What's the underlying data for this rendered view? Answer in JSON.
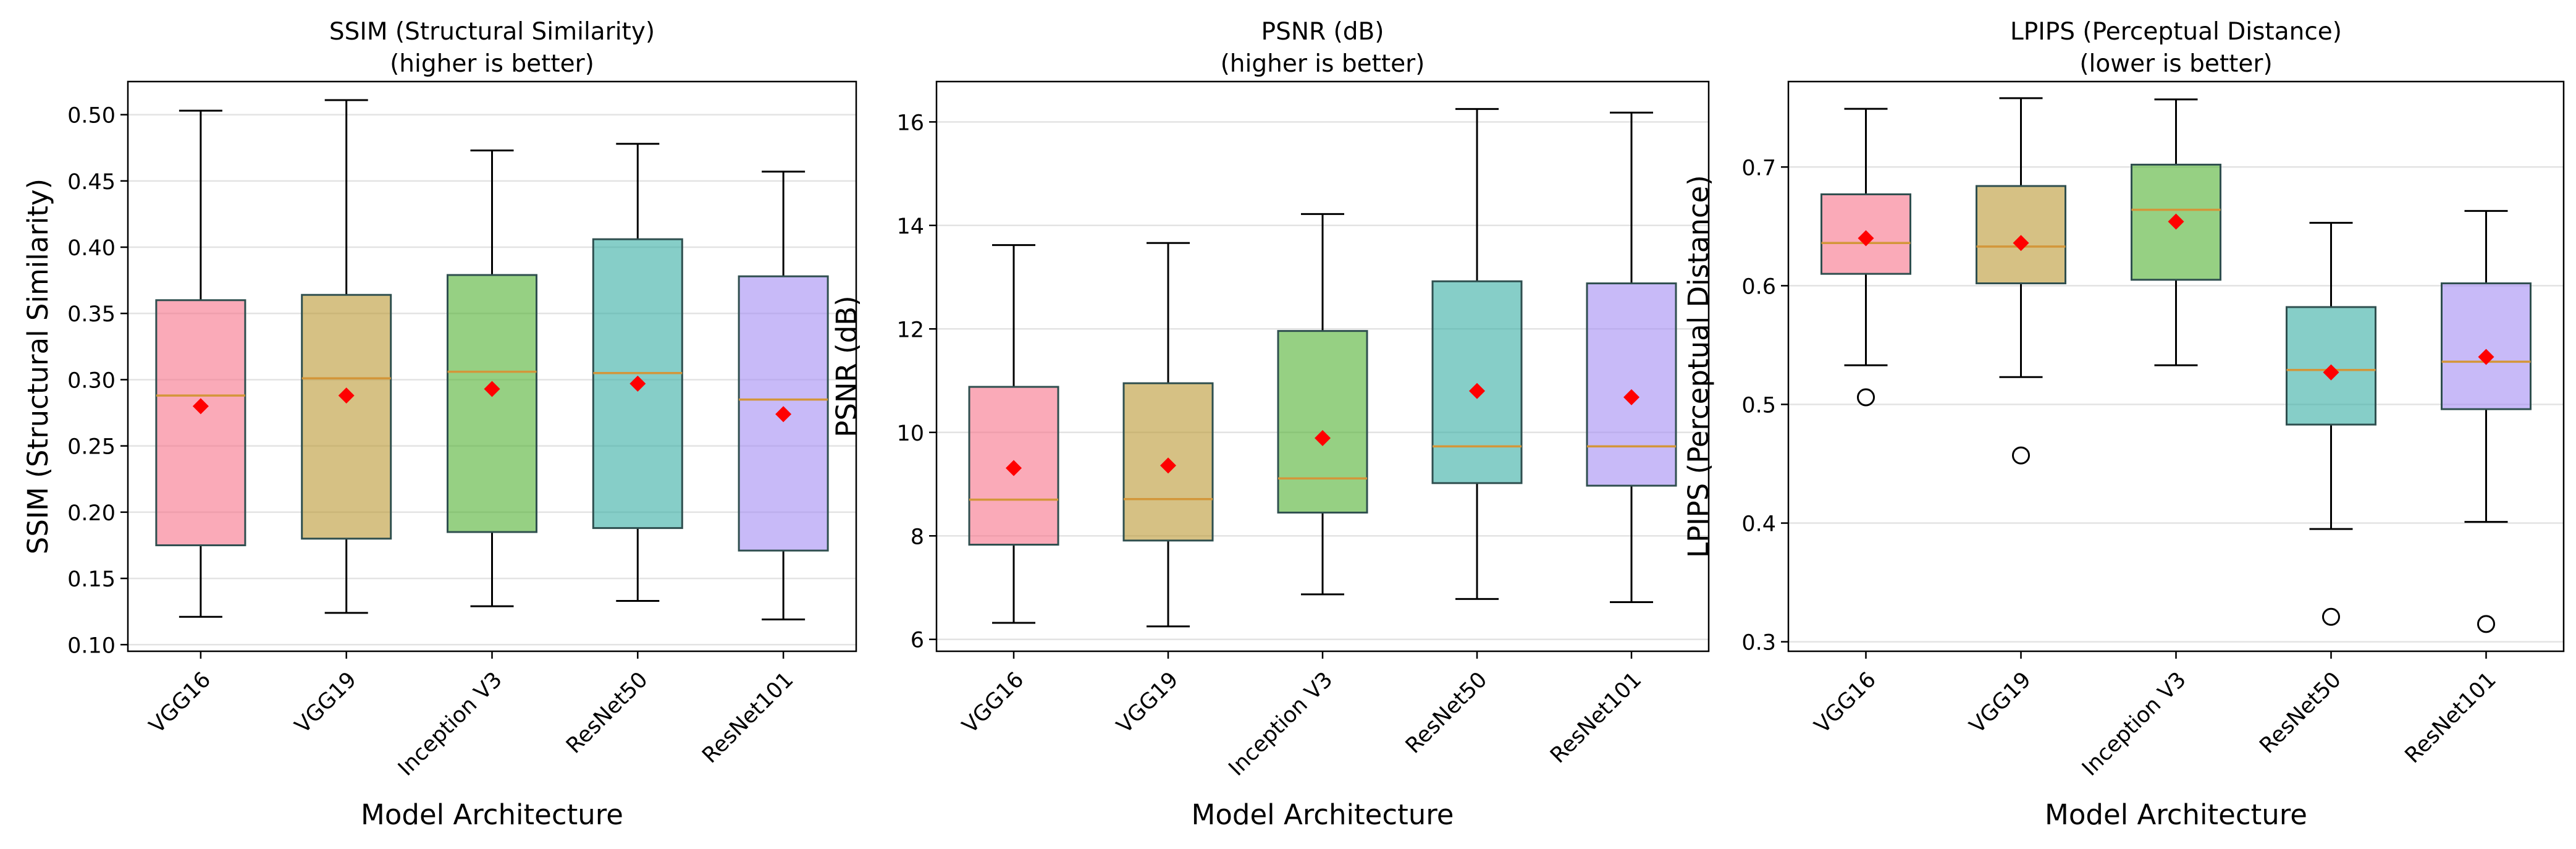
{
  "figure": {
    "background": "#ffffff"
  },
  "chart_data": [
    {
      "type": "box",
      "title_line1": "SSIM (Structural Similarity)",
      "title_line2": "(higher is better)",
      "xlabel": "Model Architecture",
      "ylabel": "SSIM (Structural Similarity)",
      "ylim": [
        0.095,
        0.525
      ],
      "yticks": [
        0.1,
        0.15,
        0.2,
        0.25,
        0.3,
        0.35,
        0.4,
        0.45,
        0.5
      ],
      "ytick_labels": [
        "0.10",
        "0.15",
        "0.20",
        "0.25",
        "0.30",
        "0.35",
        "0.40",
        "0.45",
        "0.50"
      ],
      "grid": true,
      "categories": [
        "VGG16",
        "VGG19",
        "Inception V3",
        "ResNet50",
        "ResNet101"
      ],
      "colors": [
        "#f77189",
        "#bb9832",
        "#50b131",
        "#36ada4",
        "#a48cf4"
      ],
      "boxes": [
        {
          "whislo": 0.121,
          "q1": 0.175,
          "med": 0.288,
          "q3": 0.36,
          "whishi": 0.503,
          "mean": 0.28,
          "fliers": []
        },
        {
          "whislo": 0.124,
          "q1": 0.18,
          "med": 0.301,
          "q3": 0.364,
          "whishi": 0.511,
          "mean": 0.288,
          "fliers": []
        },
        {
          "whislo": 0.129,
          "q1": 0.185,
          "med": 0.306,
          "q3": 0.379,
          "whishi": 0.473,
          "mean": 0.293,
          "fliers": []
        },
        {
          "whislo": 0.133,
          "q1": 0.188,
          "med": 0.305,
          "q3": 0.406,
          "whishi": 0.478,
          "mean": 0.297,
          "fliers": []
        },
        {
          "whislo": 0.119,
          "q1": 0.171,
          "med": 0.285,
          "q3": 0.378,
          "whishi": 0.457,
          "mean": 0.274,
          "fliers": []
        }
      ]
    },
    {
      "type": "box",
      "title_line1": "PSNR (dB)",
      "title_line2": "(higher is better)",
      "xlabel": "Model Architecture",
      "ylabel": "PSNR (dB)",
      "ylim": [
        5.77,
        16.78
      ],
      "yticks": [
        6,
        8,
        10,
        12,
        14,
        16
      ],
      "ytick_labels": [
        "6",
        "8",
        "10",
        "12",
        "14",
        "16"
      ],
      "grid": true,
      "categories": [
        "VGG16",
        "VGG19",
        "Inception V3",
        "ResNet50",
        "ResNet101"
      ],
      "colors": [
        "#f77189",
        "#bb9832",
        "#50b131",
        "#36ada4",
        "#a48cf4"
      ],
      "boxes": [
        {
          "whislo": 6.32,
          "q1": 7.83,
          "med": 8.7,
          "q3": 10.88,
          "whishi": 13.62,
          "mean": 9.31,
          "fliers": []
        },
        {
          "whislo": 6.25,
          "q1": 7.91,
          "med": 8.71,
          "q3": 10.95,
          "whishi": 13.66,
          "mean": 9.36,
          "fliers": []
        },
        {
          "whislo": 6.87,
          "q1": 8.45,
          "med": 9.11,
          "q3": 11.96,
          "whishi": 14.22,
          "mean": 9.89,
          "fliers": []
        },
        {
          "whislo": 6.78,
          "q1": 9.02,
          "med": 9.73,
          "q3": 12.92,
          "whishi": 16.25,
          "mean": 10.8,
          "fliers": []
        },
        {
          "whislo": 6.72,
          "q1": 8.97,
          "med": 9.73,
          "q3": 12.88,
          "whishi": 16.18,
          "mean": 10.68,
          "fliers": []
        }
      ]
    },
    {
      "type": "box",
      "title_line1": "LPIPS (Perceptual Distance)",
      "title_line2": "(lower is better)",
      "xlabel": "Model Architecture",
      "ylabel": "LPIPS (Perceptual Distance)",
      "ylim": [
        0.292,
        0.772
      ],
      "yticks": [
        0.3,
        0.4,
        0.5,
        0.6,
        0.7
      ],
      "ytick_labels": [
        "0.3",
        "0.4",
        "0.5",
        "0.6",
        "0.7"
      ],
      "grid": true,
      "categories": [
        "VGG16",
        "VGG19",
        "Inception V3",
        "ResNet50",
        "ResNet101"
      ],
      "colors": [
        "#f77189",
        "#bb9832",
        "#50b131",
        "#36ada4",
        "#a48cf4"
      ],
      "boxes": [
        {
          "whislo": 0.533,
          "q1": 0.61,
          "med": 0.636,
          "q3": 0.677,
          "whishi": 0.749,
          "mean": 0.64,
          "fliers": [
            0.506
          ]
        },
        {
          "whislo": 0.523,
          "q1": 0.602,
          "med": 0.633,
          "q3": 0.684,
          "whishi": 0.758,
          "mean": 0.636,
          "fliers": [
            0.457
          ]
        },
        {
          "whislo": 0.533,
          "q1": 0.605,
          "med": 0.664,
          "q3": 0.702,
          "whishi": 0.757,
          "mean": 0.654,
          "fliers": []
        },
        {
          "whislo": 0.395,
          "q1": 0.483,
          "med": 0.529,
          "q3": 0.582,
          "whishi": 0.653,
          "mean": 0.527,
          "fliers": [
            0.321
          ]
        },
        {
          "whislo": 0.401,
          "q1": 0.496,
          "med": 0.536,
          "q3": 0.602,
          "whishi": 0.663,
          "mean": 0.54,
          "fliers": [
            0.315
          ]
        }
      ]
    }
  ]
}
